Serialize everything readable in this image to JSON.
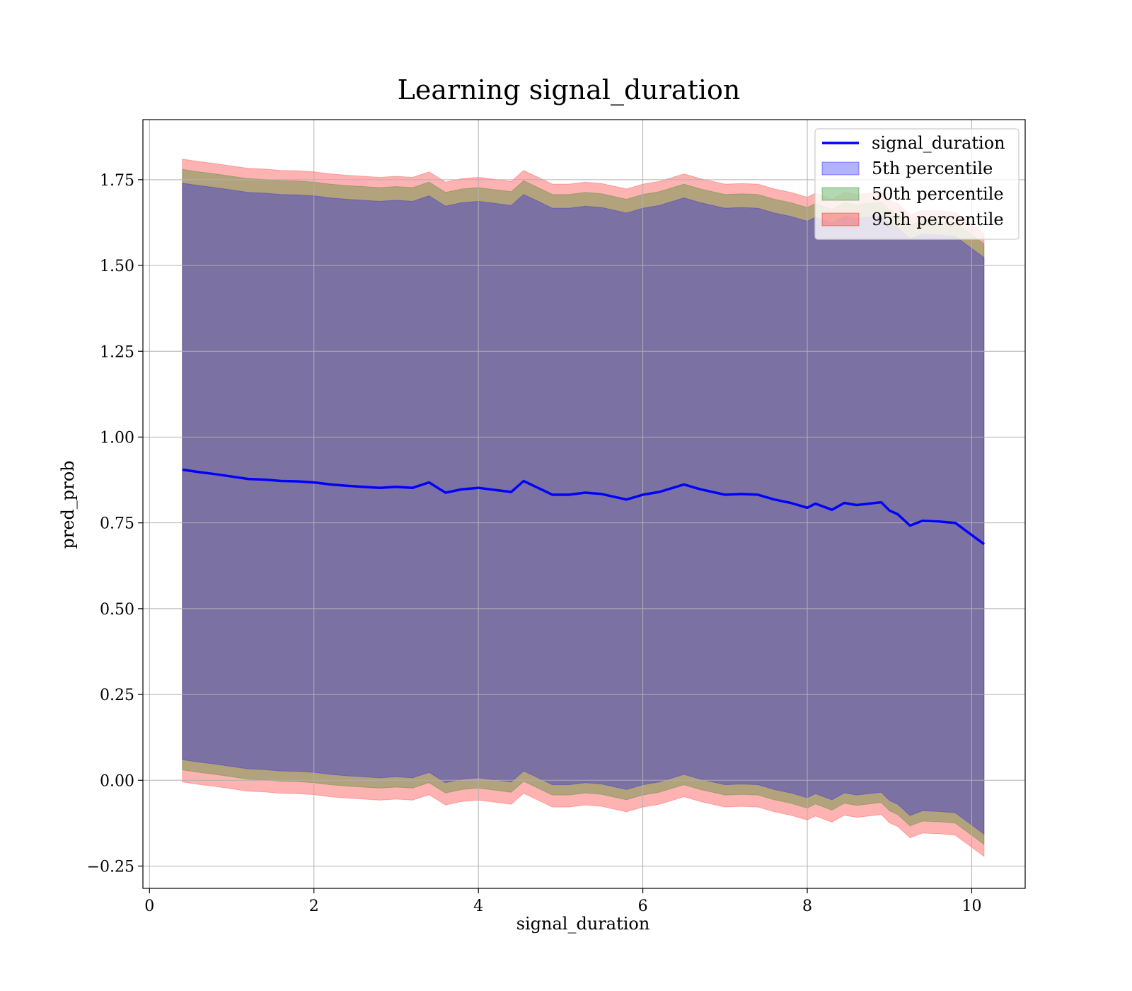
{
  "chart_data": {
    "type": "area",
    "title": "Learning signal_duration",
    "xlabel": "signal_duration",
    "ylabel": "pred_prob",
    "xlim": [
      -0.08,
      10.65
    ],
    "ylim": [
      -0.315,
      1.925
    ],
    "x_ticks": [
      0,
      2,
      4,
      6,
      8,
      10
    ],
    "y_ticks": [
      -0.25,
      0.0,
      0.25,
      0.5,
      0.75,
      1.0,
      1.25,
      1.5,
      1.75
    ],
    "x_tick_labels": [
      "0",
      "2",
      "4",
      "6",
      "8",
      "10"
    ],
    "y_tick_labels": [
      "−0.25",
      "0.00",
      "0.25",
      "0.50",
      "0.75",
      "1.00",
      "1.25",
      "1.50",
      "1.75"
    ],
    "grid": true,
    "legend_position": "top-right",
    "x": [
      0.4,
      0.6,
      0.8,
      1.0,
      1.2,
      1.4,
      1.6,
      1.8,
      2.0,
      2.2,
      2.4,
      2.6,
      2.8,
      3.0,
      3.2,
      3.4,
      3.6,
      3.8,
      4.0,
      4.2,
      4.4,
      4.55,
      4.7,
      4.9,
      5.1,
      5.3,
      5.5,
      5.8,
      6.0,
      6.2,
      6.5,
      6.7,
      7.0,
      7.2,
      7.4,
      7.6,
      7.8,
      8.0,
      8.1,
      8.3,
      8.45,
      8.6,
      8.75,
      8.9,
      9.0,
      9.1,
      9.25,
      9.4,
      9.6,
      9.8,
      10.15
    ],
    "series": [
      {
        "name": "signal_duration",
        "kind": "line",
        "color": "#0000ff",
        "values": [
          0.905,
          0.898,
          0.892,
          0.885,
          0.878,
          0.876,
          0.872,
          0.871,
          0.868,
          0.862,
          0.858,
          0.855,
          0.852,
          0.855,
          0.852,
          0.868,
          0.838,
          0.848,
          0.852,
          0.846,
          0.84,
          0.872,
          0.855,
          0.832,
          0.832,
          0.838,
          0.834,
          0.818,
          0.832,
          0.84,
          0.862,
          0.848,
          0.832,
          0.834,
          0.832,
          0.818,
          0.808,
          0.794,
          0.806,
          0.788,
          0.808,
          0.802,
          0.806,
          0.81,
          0.786,
          0.775,
          0.742,
          0.756,
          0.754,
          0.75,
          0.688
        ]
      },
      {
        "name": "5th percentile",
        "kind": "band",
        "color": "#0000ff",
        "lower": [
          0.06,
          0.053,
          0.047,
          0.04,
          0.033,
          0.031,
          0.027,
          0.026,
          0.023,
          0.017,
          0.013,
          0.01,
          0.007,
          0.01,
          0.007,
          0.023,
          -0.007,
          0.003,
          0.007,
          0.001,
          -0.005,
          0.027,
          0.01,
          -0.013,
          -0.013,
          -0.007,
          -0.011,
          -0.027,
          -0.013,
          -0.005,
          0.017,
          0.003,
          -0.013,
          -0.011,
          -0.013,
          -0.027,
          -0.037,
          -0.051,
          -0.039,
          -0.057,
          -0.037,
          -0.043,
          -0.039,
          -0.035,
          -0.059,
          -0.07,
          -0.103,
          -0.089,
          -0.091,
          -0.095,
          -0.157
        ],
        "upper": [
          1.74,
          1.733,
          1.727,
          1.72,
          1.713,
          1.711,
          1.707,
          1.706,
          1.703,
          1.697,
          1.693,
          1.69,
          1.687,
          1.69,
          1.687,
          1.703,
          1.673,
          1.683,
          1.687,
          1.681,
          1.675,
          1.707,
          1.69,
          1.667,
          1.667,
          1.673,
          1.669,
          1.653,
          1.667,
          1.675,
          1.697,
          1.683,
          1.667,
          1.669,
          1.667,
          1.653,
          1.643,
          1.629,
          1.641,
          1.623,
          1.643,
          1.637,
          1.641,
          1.645,
          1.621,
          1.61,
          1.577,
          1.591,
          1.589,
          1.585,
          1.523
        ]
      },
      {
        "name": "50th percentile",
        "kind": "band",
        "color": "#008000",
        "lower": [
          0.03,
          0.023,
          0.017,
          0.01,
          0.003,
          0.001,
          -0.003,
          -0.004,
          -0.007,
          -0.013,
          -0.017,
          -0.02,
          -0.023,
          -0.02,
          -0.023,
          -0.007,
          -0.037,
          -0.027,
          -0.023,
          -0.029,
          -0.035,
          -0.003,
          -0.02,
          -0.043,
          -0.043,
          -0.037,
          -0.041,
          -0.057,
          -0.043,
          -0.035,
          -0.013,
          -0.027,
          -0.043,
          -0.041,
          -0.043,
          -0.057,
          -0.067,
          -0.081,
          -0.069,
          -0.087,
          -0.067,
          -0.073,
          -0.069,
          -0.065,
          -0.089,
          -0.1,
          -0.133,
          -0.119,
          -0.121,
          -0.125,
          -0.187
        ],
        "upper": [
          1.78,
          1.773,
          1.767,
          1.76,
          1.753,
          1.751,
          1.747,
          1.746,
          1.743,
          1.737,
          1.733,
          1.73,
          1.727,
          1.73,
          1.727,
          1.743,
          1.713,
          1.723,
          1.727,
          1.721,
          1.715,
          1.747,
          1.73,
          1.707,
          1.707,
          1.713,
          1.709,
          1.693,
          1.707,
          1.715,
          1.737,
          1.723,
          1.707,
          1.709,
          1.707,
          1.693,
          1.683,
          1.669,
          1.681,
          1.663,
          1.683,
          1.677,
          1.681,
          1.685,
          1.661,
          1.65,
          1.617,
          1.631,
          1.629,
          1.625,
          1.563
        ]
      },
      {
        "name": "95th percentile",
        "kind": "band",
        "color": "#ff0000",
        "lower": [
          -0.005,
          -0.012,
          -0.018,
          -0.025,
          -0.032,
          -0.034,
          -0.038,
          -0.039,
          -0.042,
          -0.048,
          -0.052,
          -0.055,
          -0.058,
          -0.055,
          -0.058,
          -0.042,
          -0.072,
          -0.062,
          -0.058,
          -0.064,
          -0.07,
          -0.038,
          -0.055,
          -0.078,
          -0.078,
          -0.072,
          -0.076,
          -0.092,
          -0.078,
          -0.07,
          -0.048,
          -0.062,
          -0.078,
          -0.076,
          -0.078,
          -0.092,
          -0.102,
          -0.116,
          -0.104,
          -0.122,
          -0.102,
          -0.108,
          -0.104,
          -0.1,
          -0.124,
          -0.135,
          -0.168,
          -0.154,
          -0.156,
          -0.16,
          -0.222
        ],
        "upper": [
          1.81,
          1.803,
          1.797,
          1.79,
          1.783,
          1.781,
          1.777,
          1.776,
          1.773,
          1.767,
          1.763,
          1.76,
          1.757,
          1.76,
          1.757,
          1.773,
          1.743,
          1.753,
          1.757,
          1.751,
          1.745,
          1.777,
          1.76,
          1.737,
          1.737,
          1.743,
          1.739,
          1.723,
          1.737,
          1.745,
          1.767,
          1.753,
          1.737,
          1.739,
          1.737,
          1.723,
          1.713,
          1.699,
          1.711,
          1.693,
          1.713,
          1.707,
          1.711,
          1.715,
          1.691,
          1.68,
          1.647,
          1.661,
          1.659,
          1.655,
          1.593
        ]
      }
    ]
  }
}
